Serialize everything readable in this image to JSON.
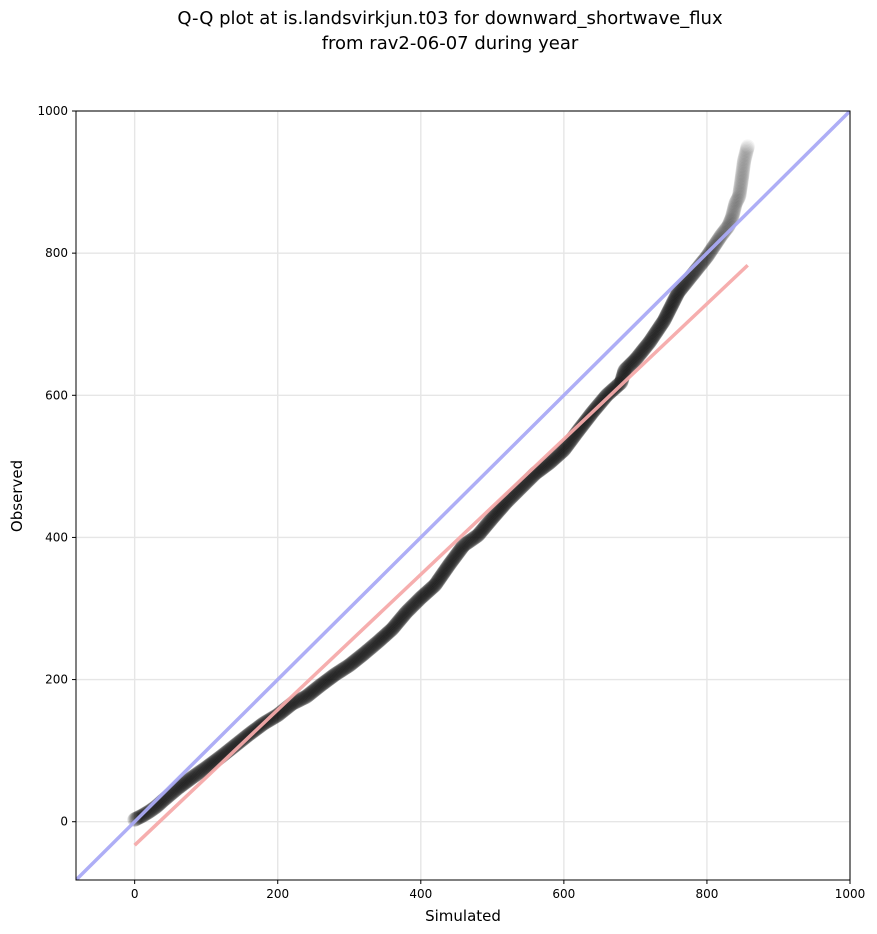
{
  "chart_data": {
    "type": "scatter",
    "title": "Q-Q plot at is.landsvirkjun.t03 for downward_shortwave_flux",
    "subtitle": "from rav2-06-07 during year",
    "xlabel": "Simulated",
    "ylabel": "Observed",
    "xlim": [
      -82,
      1000
    ],
    "ylim": [
      -82,
      1000
    ],
    "xticks": [
      0,
      200,
      400,
      600,
      800,
      1000
    ],
    "yticks": [
      0,
      200,
      400,
      600,
      800,
      1000
    ],
    "grid": true,
    "colors": {
      "points": "#000000",
      "identity_line": "#aaaaf5",
      "fit_line": "#f5aaaa"
    },
    "reference_lines": [
      {
        "kind": "identity",
        "x": [
          -82,
          1000
        ],
        "y": [
          -82,
          1000
        ]
      },
      {
        "kind": "fit",
        "x": [
          0,
          857
        ],
        "y": [
          -33,
          783
        ]
      }
    ],
    "quantiles": {
      "x": [
        0,
        10,
        20,
        30,
        40,
        60,
        80,
        100,
        120,
        140,
        160,
        180,
        200,
        220,
        240,
        260,
        280,
        300,
        320,
        340,
        360,
        380,
        400,
        420,
        440,
        460,
        480,
        500,
        520,
        540,
        560,
        580,
        600,
        620,
        640,
        660,
        680,
        685,
        700,
        720,
        740,
        760,
        780,
        800,
        810,
        820,
        830,
        835,
        840,
        845,
        848,
        852,
        857
      ],
      "y": [
        3,
        8,
        14,
        21,
        30,
        47,
        62,
        76,
        91,
        107,
        123,
        138,
        150,
        166,
        176,
        192,
        207,
        220,
        236,
        253,
        271,
        295,
        315,
        333,
        362,
        389,
        403,
        427,
        450,
        470,
        490,
        505,
        523,
        550,
        576,
        600,
        618,
        635,
        650,
        675,
        705,
        745,
        770,
        795,
        810,
        825,
        838,
        850,
        870,
        880,
        900,
        930,
        950
      ]
    }
  }
}
